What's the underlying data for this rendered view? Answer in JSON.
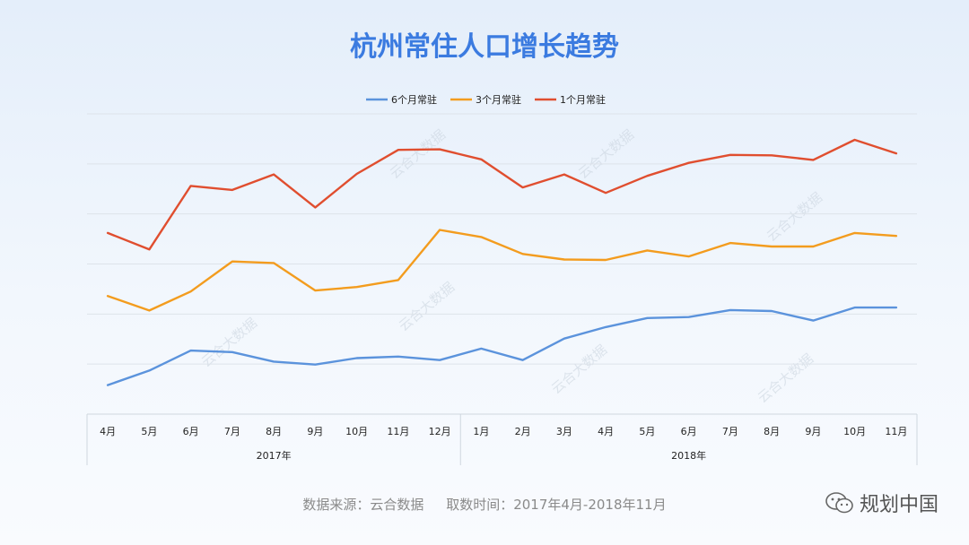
{
  "footer": {
    "source": "数据来源：云合数据",
    "period": "取数时间：2017年4月-2018年11月"
  },
  "brand": {
    "name": "规划中国",
    "logo_icon": "wechat-icon"
  },
  "watermark": {
    "text": "云合大数据"
  },
  "chart_data": {
    "type": "line",
    "title": "杭州常住人口增长趋势",
    "legend_position": "top-center",
    "grid": true,
    "ylim": [
      0,
      6
    ],
    "categories": [
      "4月",
      "5月",
      "6月",
      "7月",
      "8月",
      "9月",
      "10月",
      "11月",
      "12月",
      "1月",
      "2月",
      "3月",
      "4月",
      "5月",
      "6月",
      "7月",
      "8月",
      "9月",
      "10月",
      "11月"
    ],
    "groups": [
      {
        "label": "2017年",
        "start": 0,
        "end": 8
      },
      {
        "label": "2018年",
        "start": 9,
        "end": 19
      }
    ],
    "series": [
      {
        "name": "6个月常驻",
        "color": "#5b93dc",
        "values": [
          0.58,
          0.87,
          1.27,
          1.24,
          1.05,
          0.99,
          1.12,
          1.15,
          1.08,
          1.31,
          1.08,
          1.51,
          1.74,
          1.92,
          1.94,
          2.08,
          2.06,
          1.87,
          2.13,
          2.13
        ]
      },
      {
        "name": "3个月常驻",
        "color": "#f39c1e",
        "values": [
          2.36,
          2.07,
          2.45,
          3.05,
          3.02,
          2.47,
          2.54,
          2.68,
          3.68,
          3.54,
          3.2,
          3.09,
          3.08,
          3.27,
          3.15,
          3.42,
          3.35,
          3.35,
          3.62,
          3.56
        ]
      },
      {
        "name": "1个月常驻",
        "color": "#e04e2f",
        "values": [
          3.62,
          3.29,
          4.56,
          4.48,
          4.79,
          4.13,
          4.8,
          5.28,
          5.29,
          5.09,
          4.53,
          4.79,
          4.42,
          4.76,
          5.02,
          5.18,
          5.17,
          5.08,
          5.48,
          5.21
        ]
      }
    ]
  }
}
